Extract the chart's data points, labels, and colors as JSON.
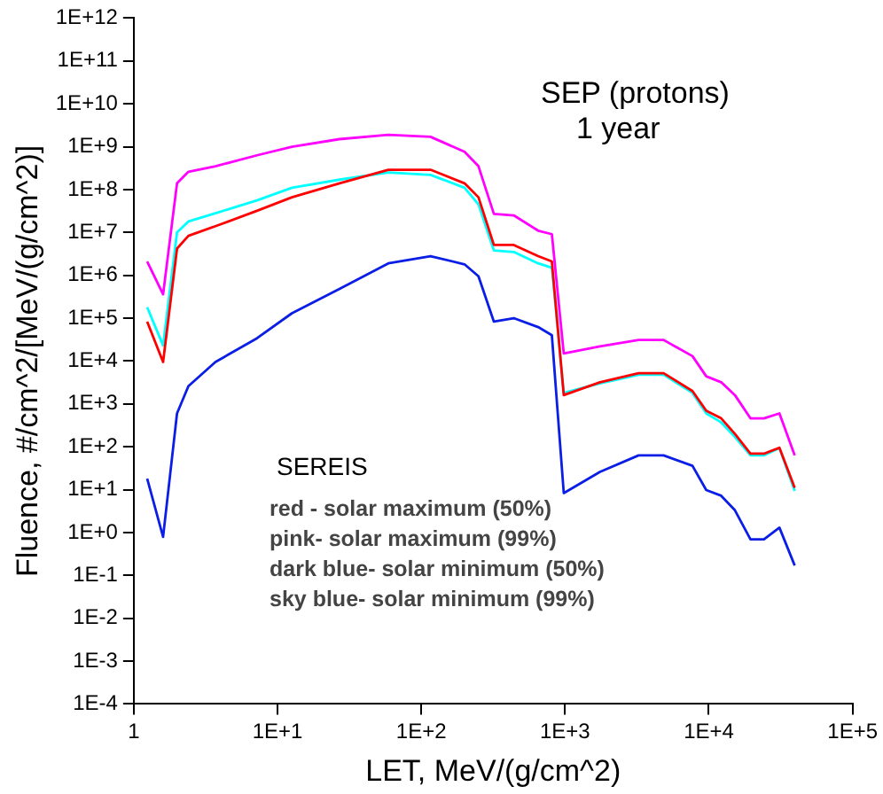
{
  "chart_data": {
    "type": "line",
    "xlabel": "LET, MeV/(g/cm^2)",
    "ylabel": "Fluence, #/cm^2/[MeV/(g/cm^2)]",
    "annotations": [
      "SEP (protons)",
      "1 year",
      "SEREIS",
      "red - solar maximum (50%)",
      "pink- solar maximum (99%)",
      "dark blue- solar minimum (50%)",
      "sky blue- solar minimum (99%)"
    ],
    "log": "xy",
    "grid": false,
    "legend": false,
    "marker": "none",
    "line_style": "solid",
    "x": [
      1.24,
      1.6,
      2.0,
      2.4,
      3.7,
      7.2,
      12.6,
      27,
      59,
      116,
      200,
      250,
      320,
      440,
      650,
      810,
      980,
      1750,
      3250,
      4850,
      7700,
      9600,
      12200,
      15200,
      19500,
      24200,
      31000,
      39600
    ],
    "xlim": [
      1,
      100000
    ],
    "xticks": [
      1,
      {
        "value": 10,
        "label": "1E+1"
      },
      {
        "value": 100,
        "label": "1E+2"
      },
      {
        "value": 1000,
        "label": "1E+3"
      },
      {
        "value": 10000,
        "label": "1E+4"
      },
      {
        "value": 100000,
        "label": "1E+5"
      }
    ],
    "ylim": [
      0.0001,
      1000000000000.0
    ],
    "yticks": [
      {
        "value": 0.0001,
        "label": "1E-4"
      },
      {
        "value": 0.001,
        "label": "1E-3"
      },
      {
        "value": 0.01,
        "label": "1E-2"
      },
      {
        "value": 0.1,
        "label": "1E-1"
      },
      {
        "value": 1,
        "label": "1E+0"
      },
      {
        "value": 10,
        "label": "1E+1"
      },
      {
        "value": 100,
        "label": "1E+2"
      },
      {
        "value": 1000,
        "label": "1E+3"
      },
      {
        "value": 10000,
        "label": "1E+4"
      },
      {
        "value": 100000,
        "label": "1E+5"
      },
      {
        "value": 1000000,
        "label": "1E+6"
      },
      {
        "value": 10000000,
        "label": "1E+7"
      },
      {
        "value": 100000000,
        "label": "1E+8"
      },
      {
        "value": 1000000000,
        "label": "1E+9"
      },
      {
        "value": 10000000000,
        "label": "1E+10"
      },
      {
        "value": 100000000000,
        "label": "1E+11"
      },
      {
        "value": 1000000000000,
        "label": "1E+12"
      }
    ],
    "series": [
      {
        "color": "#ff00ff",
        "values": [
          2100000.0,
          360000.0,
          140000000.0,
          260000000.0,
          350000000.0,
          630000000.0,
          1000000000.0,
          1500000000.0,
          1900000000.0,
          1700000000.0,
          760000000.0,
          350000000.0,
          27000000.0,
          25000000.0,
          11000000.0,
          9100000.0,
          15000.0,
          22000.0,
          31000.0,
          31000.0,
          13000.0,
          4400.0,
          3200.0,
          1600.0,
          460,
          460,
          600,
          63
        ]
      },
      {
        "color": "#ff0000",
        "values": [
          83000.0,
          9500.0,
          4200000.0,
          8300000.0,
          14000000.0,
          32000000.0,
          66000000.0,
          140000000.0,
          290000000.0,
          290000000.0,
          140000000.0,
          66000000.0,
          5100000.0,
          5100000.0,
          2800000.0,
          2100000.0,
          1600.0,
          3200.0,
          5200.0,
          5200.0,
          2000.0,
          690,
          460,
          200,
          69,
          69,
          95,
          11
        ]
      },
      {
        "color": "#00ffff",
        "values": [
          180000.0,
          23000.0,
          10000000.0,
          18000000.0,
          28000000.0,
          56000000.0,
          110000000.0,
          170000000.0,
          250000000.0,
          220000000.0,
          110000000.0,
          45000000.0,
          3800000.0,
          3500000.0,
          1900000.0,
          1500000.0,
          1800.0,
          3000.0,
          4800.0,
          4800.0,
          1800.0,
          600,
          370,
          170,
          63,
          63,
          93,
          9.3
        ]
      },
      {
        "color": "#0a1ee6",
        "values": [
          18,
          0.79,
          600,
          2600.0,
          9500.0,
          34000.0,
          130000.0,
          480000.0,
          1900000.0,
          2800000.0,
          1800000.0,
          950000.0,
          83000.0,
          100000.0,
          62000.0,
          40000.0,
          8.3,
          26,
          63,
          63,
          36,
          9.8,
          7.2,
          3.3,
          0.69,
          0.69,
          1.3,
          0.17
        ]
      }
    ]
  }
}
